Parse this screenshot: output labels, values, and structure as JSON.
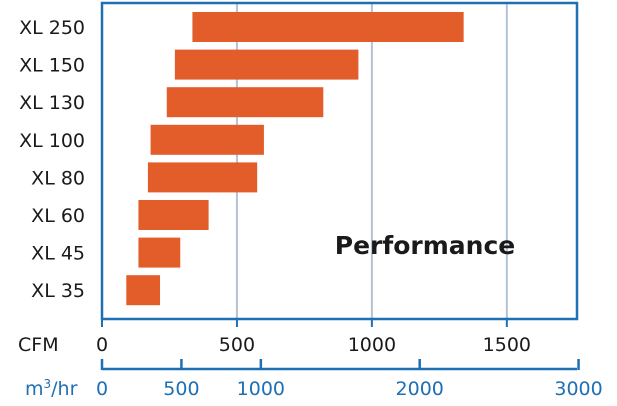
{
  "chart_data": {
    "type": "bar",
    "orientation": "horizontal",
    "annotation": "Performance",
    "categories": [
      "XL 250",
      "XL 150",
      "XL 130",
      "XL 100",
      "XL 80",
      "XL 60",
      "XL 45",
      "XL 35"
    ],
    "ranges": [
      [
        335,
        1340
      ],
      [
        270,
        950
      ],
      [
        240,
        820
      ],
      [
        180,
        600
      ],
      [
        170,
        575
      ],
      [
        135,
        395
      ],
      [
        135,
        290
      ],
      [
        90,
        215
      ]
    ],
    "xlim": [
      0,
      1760
    ],
    "cfm_axis": {
      "label": "CFM",
      "ticks": [
        0,
        500,
        1000,
        1500
      ],
      "tick_labels": [
        "0",
        "500",
        "1000",
        "1500"
      ]
    },
    "m3_axis": {
      "label_main": "m",
      "label_sup": "3",
      "label_rest": "/hr",
      "ticks": [
        0,
        500,
        1000,
        2000,
        3000
      ],
      "tick_labels": [
        "0",
        "500",
        "1000",
        "2000",
        "3000"
      ]
    },
    "grid": true,
    "colors": {
      "bar": "#e35d2b",
      "frame": "#1f6fb3",
      "grid": "#b4c2d6",
      "m3_axis": "#1f6fb3"
    }
  }
}
